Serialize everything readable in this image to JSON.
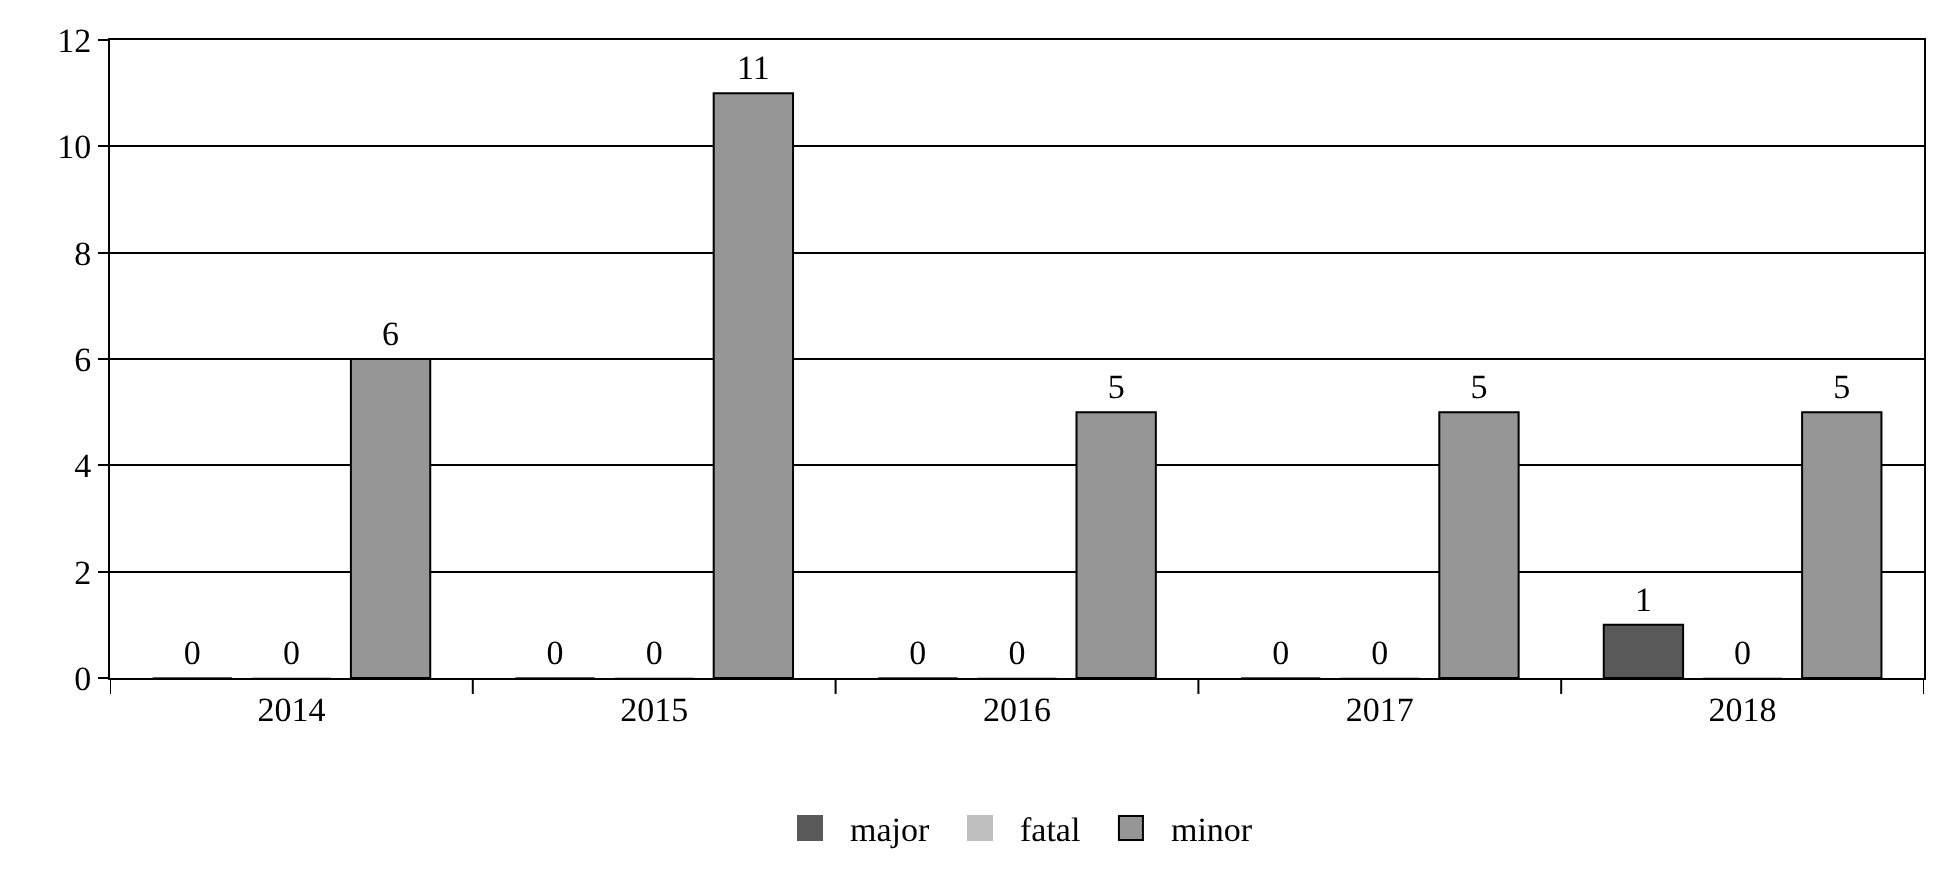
{
  "chart_data": {
    "type": "bar",
    "categories": [
      "2014",
      "2015",
      "2016",
      "2017",
      "2018"
    ],
    "series": [
      {
        "name": "major",
        "color": "#595959",
        "values": [
          0,
          0,
          0,
          0,
          1
        ]
      },
      {
        "name": "fatal",
        "color": "#bfbfbf",
        "values": [
          0,
          0,
          0,
          0,
          0
        ]
      },
      {
        "name": "minor",
        "color": "#969696",
        "values": [
          6,
          11,
          5,
          5,
          5
        ]
      }
    ],
    "ylim": [
      0,
      12
    ],
    "yticks": [
      0,
      2,
      4,
      6,
      8,
      10,
      12
    ],
    "grid": "y",
    "legend": "bottom",
    "data_labels": true
  }
}
